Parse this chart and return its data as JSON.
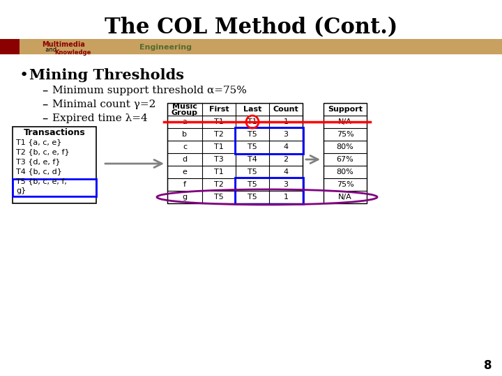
{
  "title": "The COL Method (Cont.)",
  "bullet_main": "Mining Thresholds",
  "bullets": [
    "Minimum support threshold α=75%",
    "Minimal count γ=2",
    "Expired time λ=4"
  ],
  "transactions_header": "Transactions",
  "transactions": [
    "T1 {a, c, e}",
    "T2 {b, c, e, f}",
    "T3 {d, e, f}",
    "T4 {b, c, d}",
    "T5 {b, c, e, f,",
    "g}"
  ],
  "table_headers": [
    "Music\nGroup",
    "First",
    "Last",
    "Count"
  ],
  "support_header": "Support",
  "table_rows": [
    [
      "a",
      "T1",
      "T1",
      "1",
      "N/A"
    ],
    [
      "b",
      "T2",
      "T5",
      "3",
      "75%"
    ],
    [
      "c",
      "T1",
      "T5",
      "4",
      "80%"
    ],
    [
      "d",
      "T3",
      "T4",
      "2",
      "67%"
    ],
    [
      "e",
      "T1",
      "T5",
      "4",
      "80%"
    ],
    [
      "f",
      "T2",
      "T5",
      "3",
      "75%"
    ],
    [
      "g",
      "T5",
      "T5",
      "1",
      "N/A"
    ]
  ],
  "bg_color": "#ffffff",
  "title_fontsize": 22,
  "bar_color": "#c8a060",
  "page_number": "8"
}
